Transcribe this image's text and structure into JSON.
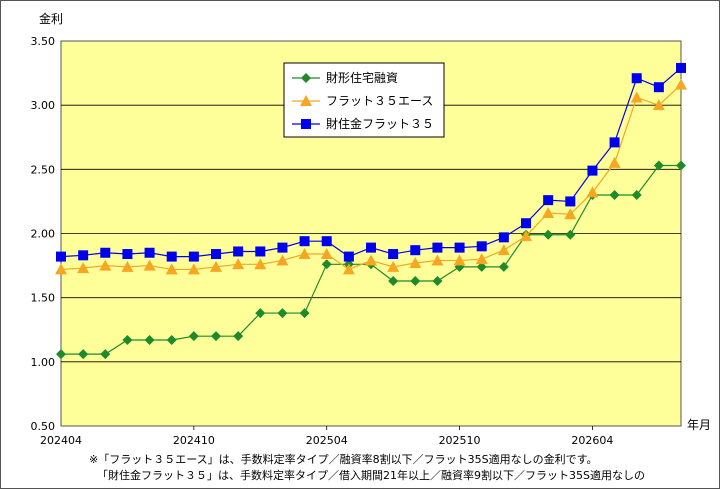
{
  "chart_data": {
    "type": "line",
    "ylabel": "金利",
    "xlabel": "年月",
    "ylim": [
      0.5,
      3.5
    ],
    "yticks": [
      "0.50",
      "1.00",
      "1.50",
      "2.00",
      "2.50",
      "3.00",
      "3.50"
    ],
    "xtick_labels": [
      "202404",
      "202410",
      "202504",
      "202510",
      "202604"
    ],
    "grid": true,
    "legend_position": "top-right",
    "series": [
      {
        "name": "財形住宅融資",
        "color": "#1f8a2a",
        "marker": "diamond",
        "values": [
          1.06,
          1.06,
          1.06,
          1.17,
          1.17,
          1.17,
          1.2,
          1.2,
          1.2,
          1.38,
          1.38,
          1.38,
          1.76,
          1.76,
          1.76,
          1.63,
          1.63,
          1.63,
          1.74,
          1.74,
          1.74,
          1.99,
          1.99,
          1.99,
          2.3,
          2.3,
          2.3,
          2.53,
          2.53
        ]
      },
      {
        "name": "フラット３５エース",
        "color": "#f5a623",
        "marker": "triangle",
        "values": [
          1.72,
          1.73,
          1.75,
          1.74,
          1.75,
          1.72,
          1.72,
          1.74,
          1.76,
          1.76,
          1.79,
          1.84,
          1.84,
          1.72,
          1.79,
          1.74,
          1.77,
          1.79,
          1.79,
          1.8,
          1.87,
          1.98,
          2.16,
          2.15,
          2.32,
          2.55,
          3.06,
          3.0,
          3.16
        ]
      },
      {
        "name": "財住金フラット３５",
        "color": "#0000ee",
        "marker": "square",
        "values": [
          1.82,
          1.83,
          1.85,
          1.84,
          1.85,
          1.82,
          1.82,
          1.84,
          1.86,
          1.86,
          1.89,
          1.94,
          1.94,
          1.82,
          1.89,
          1.84,
          1.87,
          1.89,
          1.89,
          1.9,
          1.97,
          2.08,
          2.26,
          2.25,
          2.49,
          2.71,
          3.21,
          3.14,
          3.29
        ]
      }
    ]
  },
  "notes": [
    "※「フラット３５エース」は、手数料定率タイプ／融資率8割以下／フラット35S適用なしの金利です。",
    "「財住金フラット３５」は、手数料定率タイプ／借入期間21年以上／融資率9割以下／フラット35S適用なしの"
  ]
}
